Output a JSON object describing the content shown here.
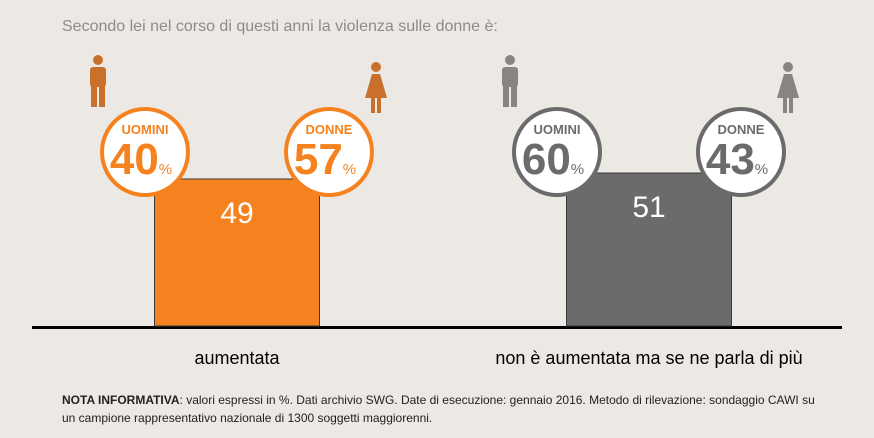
{
  "question": "Secondo lei nel corso di questi anni la violenza sulle donne è:",
  "note": {
    "label": "NOTA INFORMATIVA",
    "text": ": valori espressi in %. Dati archivio SWG. Date di esecuzione: gennaio 2016. Metodo di rilevazione: sondaggio CAWI su un campione rappresentativo nazionale di 1300 soggetti maggiorenni."
  },
  "colors": {
    "orange": "#f5821f",
    "gray": "#6b6b6b",
    "icon_orange": "#c9712c",
    "icon_gray": "#8a8480"
  },
  "chart_data": {
    "type": "bar",
    "categories": [
      "aumentata",
      "non è aumentata ma se ne parla di più"
    ],
    "values": [
      49,
      51
    ],
    "unit": "%",
    "ylim": [
      0,
      100
    ],
    "breakdown": [
      {
        "category": "aumentata",
        "men_label": "UOMINI",
        "men": 40,
        "women_label": "DONNE",
        "women": 57,
        "color": "orange"
      },
      {
        "category": "non è aumentata ma se ne parla di più",
        "men_label": "UOMINI",
        "men": 60,
        "women_label": "DONNE",
        "women": 43,
        "color": "gray"
      }
    ]
  }
}
